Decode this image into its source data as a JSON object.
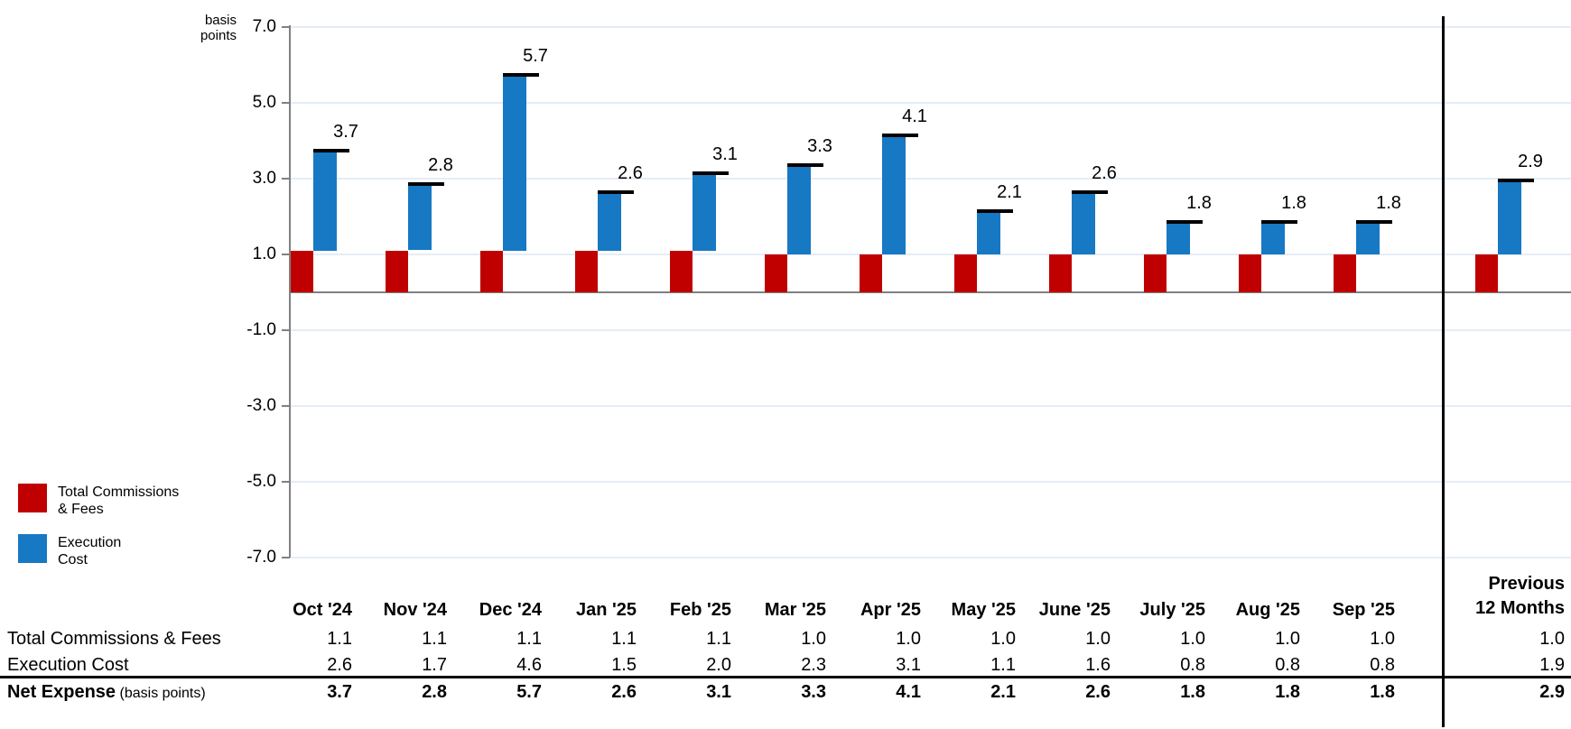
{
  "unit_label": {
    "line1": "basis",
    "line2": "points"
  },
  "colors": {
    "commissions_red": "#c00000",
    "execution_blue": "#1778c4",
    "gridline": "#e4ecf6",
    "axis_gray": "#808080",
    "separator_black": "#000000"
  },
  "legend": {
    "items": [
      {
        "name": "total-commissions-fees",
        "label_line1": "Total Commissions",
        "label_line2": "& Fees",
        "color": "#c00000"
      },
      {
        "name": "execution-cost",
        "label_line1": "Execution",
        "label_line2": "Cost",
        "color": "#1778c4"
      }
    ]
  },
  "chart_data": {
    "type": "bar",
    "stacked": true,
    "title": "",
    "ylabel": "basis points",
    "categories": [
      "Oct '24",
      "Nov '24",
      "Dec '24",
      "Jan '25",
      "Feb '25",
      "Mar '25",
      "Apr '25",
      "May '25",
      "June '25",
      "July '25",
      "Aug '25",
      "Sep '25",
      "Previous 12 Months"
    ],
    "series": [
      {
        "name": "Total Commissions & Fees",
        "color": "#c00000",
        "values": [
          1.1,
          1.1,
          1.1,
          1.1,
          1.1,
          1.0,
          1.0,
          1.0,
          1.0,
          1.0,
          1.0,
          1.0,
          1.0
        ]
      },
      {
        "name": "Execution Cost",
        "color": "#1778c4",
        "values": [
          2.6,
          1.7,
          4.6,
          1.5,
          2.0,
          2.3,
          3.1,
          1.1,
          1.6,
          0.8,
          0.8,
          0.8,
          1.9
        ]
      }
    ],
    "totals": [
      3.7,
      2.8,
      5.7,
      2.6,
      3.1,
      3.3,
      4.1,
      2.1,
      2.6,
      1.8,
      1.8,
      1.8,
      2.9
    ],
    "yticks": [
      7.0,
      5.0,
      3.0,
      1.0,
      -1.0,
      -3.0,
      -5.0,
      -7.0
    ],
    "ylim": [
      -7.0,
      7.0
    ],
    "grid": true,
    "legend_position": "bottom-left",
    "annotation": "vertical divider before Previous 12 Months group"
  },
  "table": {
    "columns": [
      "Oct '24",
      "Nov '24",
      "Dec '24",
      "Jan '25",
      "Feb '25",
      "Mar '25",
      "Apr '25",
      "May '25",
      "June '25",
      "July '25",
      "Aug '25",
      "Sep '25"
    ],
    "last_column": {
      "line1": "Previous",
      "line2": "12 Months"
    },
    "rows": [
      {
        "label": "Total Commissions & Fees",
        "suffix": "",
        "bold": false,
        "values": [
          "1.1",
          "1.1",
          "1.1",
          "1.1",
          "1.1",
          "1.0",
          "1.0",
          "1.0",
          "1.0",
          "1.0",
          "1.0",
          "1.0"
        ],
        "last_value": "1.0"
      },
      {
        "label": "Execution Cost",
        "suffix": "",
        "bold": false,
        "values": [
          "2.6",
          "1.7",
          "4.6",
          "1.5",
          "2.0",
          "2.3",
          "3.1",
          "1.1",
          "1.6",
          "0.8",
          "0.8",
          "0.8"
        ],
        "last_value": "1.9"
      },
      {
        "label": "Net Expense",
        "suffix": "(basis points)",
        "bold": true,
        "values": [
          "3.7",
          "2.8",
          "5.7",
          "2.6",
          "3.1",
          "3.3",
          "4.1",
          "2.1",
          "2.6",
          "1.8",
          "1.8",
          "1.8"
        ],
        "last_value": "2.9"
      }
    ]
  }
}
